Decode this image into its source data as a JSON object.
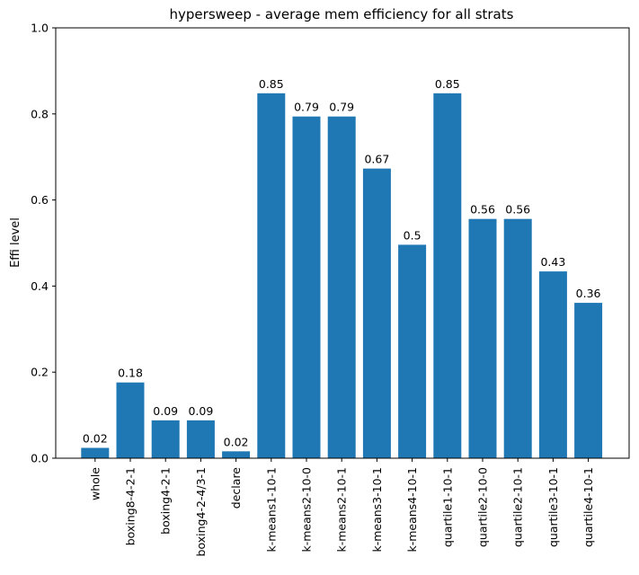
{
  "chart_data": {
    "type": "bar",
    "title": "hypersweep - average mem efficiency for all strats",
    "xlabel": "",
    "ylabel": "Effi level",
    "ylim": [
      0,
      1.0
    ],
    "yticks": [
      "0.0",
      "0.2",
      "0.4",
      "0.6",
      "0.8",
      "1.0"
    ],
    "grid": false,
    "bar_color": "#1f77b4",
    "categories": [
      "whole",
      "boxing8-4-2-1",
      "boxing4-2-1",
      "boxing4-2-4/3-1",
      "declare",
      "k-means1-10-1",
      "k-means2-10-0",
      "k-means2-10-1",
      "k-means3-10-1",
      "k-means4-10-1",
      "quartile1-10-1",
      "quartile2-10-0",
      "quartile2-10-1",
      "quartile3-10-1",
      "quartile4-10-1"
    ],
    "values": [
      0.024,
      0.176,
      0.088,
      0.088,
      0.016,
      0.848,
      0.794,
      0.794,
      0.673,
      0.496,
      0.848,
      0.556,
      0.556,
      0.434,
      0.361
    ],
    "data_labels": [
      "0.02",
      "0.18",
      "0.09",
      "0.09",
      "0.02",
      "0.85",
      "0.79",
      "0.79",
      "0.67",
      "0.5",
      "0.85",
      "0.56",
      "0.56",
      "0.43",
      "0.36"
    ]
  }
}
